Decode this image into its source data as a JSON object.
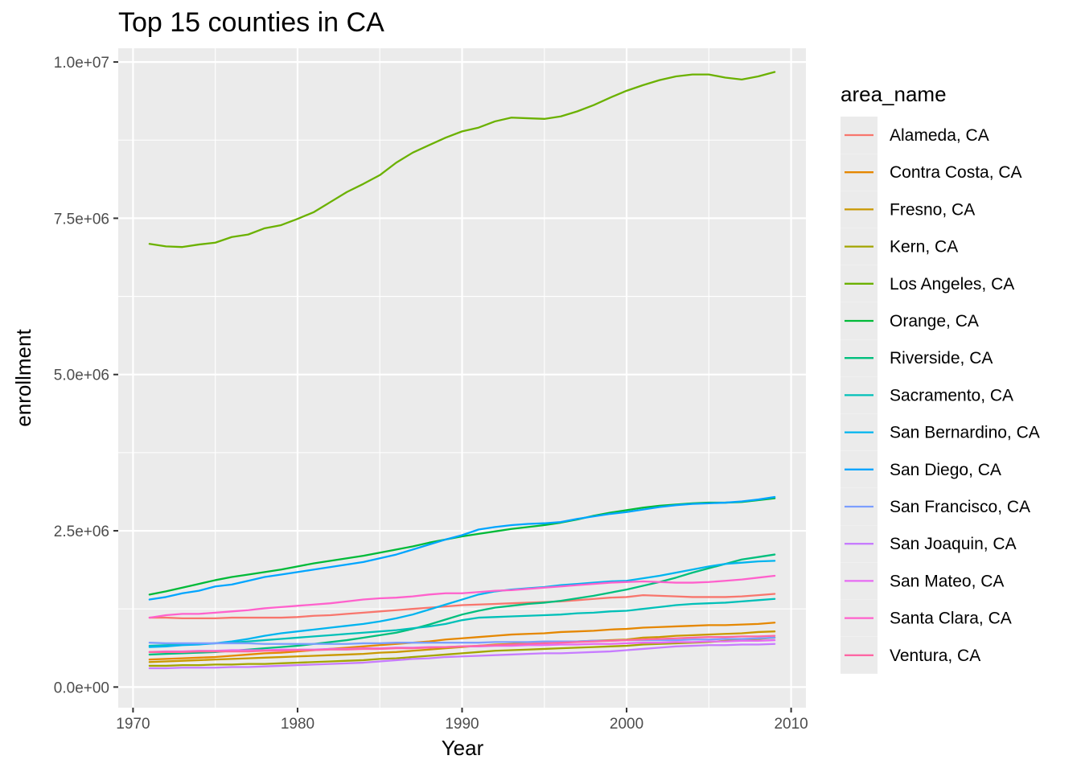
{
  "chart_data": {
    "type": "line",
    "title": "Top 15 counties in CA",
    "xlabel": "Year",
    "ylabel": "enrollment",
    "xlim": [
      1969.1,
      2010.9
    ],
    "ylim": [
      -330000,
      10220000
    ],
    "x_ticks": [
      1970,
      1980,
      1990,
      2000,
      2010
    ],
    "x_tick_labels": [
      "1970",
      "1980",
      "1990",
      "2000",
      "2010"
    ],
    "y_ticks": [
      0,
      2500000,
      5000000,
      7500000,
      10000000
    ],
    "y_tick_labels": [
      "0.0e+00",
      "2.5e+06",
      "5.0e+06",
      "7.5e+06",
      "1.0e+07"
    ],
    "grid": true,
    "legend_title": "area_name",
    "legend_position": "right",
    "x": [
      1971,
      1972,
      1973,
      1974,
      1975,
      1976,
      1977,
      1978,
      1979,
      1980,
      1981,
      1982,
      1983,
      1984,
      1985,
      1986,
      1987,
      1988,
      1989,
      1990,
      1991,
      1992,
      1993,
      1994,
      1995,
      1996,
      1997,
      1998,
      1999,
      2000,
      2001,
      2002,
      2003,
      2004,
      2005,
      2006,
      2007,
      2008,
      2009
    ],
    "series": [
      {
        "name": "Alameda, CA",
        "color": "#F8766D",
        "values": [
          1110000,
          1110000,
          1100000,
          1100000,
          1100000,
          1110000,
          1110000,
          1110000,
          1110000,
          1120000,
          1140000,
          1150000,
          1170000,
          1190000,
          1210000,
          1230000,
          1250000,
          1270000,
          1290000,
          1310000,
          1320000,
          1330000,
          1340000,
          1350000,
          1360000,
          1370000,
          1390000,
          1410000,
          1430000,
          1440000,
          1470000,
          1460000,
          1450000,
          1440000,
          1440000,
          1440000,
          1450000,
          1470000,
          1490000
        ]
      },
      {
        "name": "Contra Costa, CA",
        "color": "#E58700",
        "values": [
          440000,
          450000,
          460000,
          470000,
          480000,
          500000,
          520000,
          540000,
          550000,
          570000,
          590000,
          610000,
          630000,
          650000,
          670000,
          690000,
          710000,
          730000,
          760000,
          780000,
          800000,
          820000,
          840000,
          850000,
          860000,
          880000,
          890000,
          900000,
          920000,
          930000,
          950000,
          960000,
          970000,
          980000,
          990000,
          990000,
          1000000,
          1010000,
          1030000
        ]
      },
      {
        "name": "Fresno, CA",
        "color": "#C99800",
        "values": [
          400000,
          410000,
          420000,
          430000,
          440000,
          450000,
          460000,
          470000,
          480000,
          490000,
          500000,
          510000,
          520000,
          530000,
          550000,
          560000,
          580000,
          600000,
          620000,
          640000,
          660000,
          680000,
          690000,
          700000,
          710000,
          720000,
          730000,
          740000,
          750000,
          760000,
          790000,
          800000,
          820000,
          830000,
          840000,
          850000,
          860000,
          880000,
          890000
        ]
      },
      {
        "name": "Kern, CA",
        "color": "#A3A500",
        "values": [
          340000,
          340000,
          350000,
          350000,
          360000,
          360000,
          370000,
          370000,
          380000,
          390000,
          400000,
          410000,
          420000,
          430000,
          450000,
          460000,
          480000,
          500000,
          520000,
          540000,
          560000,
          580000,
          590000,
          600000,
          610000,
          620000,
          630000,
          640000,
          650000,
          660000,
          680000,
          690000,
          700000,
          710000,
          720000,
          740000,
          750000,
          770000,
          790000
        ]
      },
      {
        "name": "Los Angeles, CA",
        "color": "#6BB100",
        "values": [
          7090000,
          7050000,
          7040000,
          7080000,
          7110000,
          7200000,
          7240000,
          7340000,
          7390000,
          7490000,
          7600000,
          7760000,
          7920000,
          8050000,
          8190000,
          8390000,
          8550000,
          8670000,
          8790000,
          8890000,
          8950000,
          9050000,
          9110000,
          9100000,
          9090000,
          9130000,
          9210000,
          9310000,
          9430000,
          9540000,
          9630000,
          9710000,
          9770000,
          9800000,
          9800000,
          9750000,
          9720000,
          9770000,
          9840000
        ]
      },
      {
        "name": "Orange, CA",
        "color": "#00BA38",
        "values": [
          1480000,
          1530000,
          1590000,
          1650000,
          1710000,
          1760000,
          1800000,
          1840000,
          1880000,
          1930000,
          1980000,
          2020000,
          2060000,
          2100000,
          2150000,
          2200000,
          2250000,
          2310000,
          2360000,
          2410000,
          2450000,
          2490000,
          2530000,
          2560000,
          2590000,
          2630000,
          2680000,
          2740000,
          2790000,
          2830000,
          2870000,
          2900000,
          2920000,
          2940000,
          2950000,
          2950000,
          2960000,
          2990000,
          3020000
        ]
      },
      {
        "name": "Riverside, CA",
        "color": "#00BF7D",
        "values": [
          520000,
          530000,
          540000,
          550000,
          560000,
          580000,
          600000,
          620000,
          640000,
          660000,
          690000,
          720000,
          750000,
          790000,
          830000,
          870000,
          930000,
          1000000,
          1080000,
          1160000,
          1220000,
          1270000,
          1300000,
          1330000,
          1350000,
          1380000,
          1420000,
          1460000,
          1510000,
          1560000,
          1620000,
          1680000,
          1750000,
          1830000,
          1900000,
          1970000,
          2040000,
          2080000,
          2120000
        ]
      },
      {
        "name": "Sacramento, CA",
        "color": "#00C0B8",
        "values": [
          660000,
          670000,
          680000,
          690000,
          700000,
          710000,
          730000,
          750000,
          770000,
          790000,
          810000,
          830000,
          850000,
          870000,
          890000,
          910000,
          940000,
          970000,
          1010000,
          1070000,
          1110000,
          1120000,
          1130000,
          1140000,
          1150000,
          1160000,
          1180000,
          1190000,
          1210000,
          1220000,
          1250000,
          1280000,
          1310000,
          1330000,
          1340000,
          1350000,
          1370000,
          1390000,
          1410000
        ]
      },
      {
        "name": "San Bernardino, CA",
        "color": "#00B4EF",
        "values": [
          640000,
          650000,
          670000,
          680000,
          700000,
          730000,
          770000,
          820000,
          860000,
          890000,
          920000,
          950000,
          980000,
          1010000,
          1050000,
          1100000,
          1160000,
          1240000,
          1320000,
          1400000,
          1480000,
          1530000,
          1560000,
          1580000,
          1600000,
          1630000,
          1650000,
          1670000,
          1690000,
          1700000,
          1740000,
          1780000,
          1830000,
          1880000,
          1930000,
          1970000,
          1990000,
          2010000,
          2020000
        ]
      },
      {
        "name": "San Diego, CA",
        "color": "#00A5FF",
        "values": [
          1400000,
          1440000,
          1500000,
          1540000,
          1610000,
          1640000,
          1700000,
          1760000,
          1800000,
          1840000,
          1880000,
          1920000,
          1960000,
          2000000,
          2060000,
          2120000,
          2200000,
          2280000,
          2360000,
          2430000,
          2520000,
          2560000,
          2590000,
          2610000,
          2620000,
          2640000,
          2690000,
          2730000,
          2770000,
          2800000,
          2840000,
          2880000,
          2910000,
          2930000,
          2940000,
          2950000,
          2970000,
          3000000,
          3040000
        ]
      },
      {
        "name": "San Francisco, CA",
        "color": "#7C9EFF",
        "values": [
          710000,
          700000,
          700000,
          700000,
          700000,
          700000,
          700000,
          690000,
          690000,
          690000,
          690000,
          690000,
          690000,
          700000,
          700000,
          710000,
          710000,
          710000,
          710000,
          710000,
          710000,
          720000,
          720000,
          720000,
          730000,
          730000,
          730000,
          740000,
          740000,
          750000,
          750000,
          750000,
          750000,
          760000,
          760000,
          770000,
          770000,
          780000,
          790000
        ]
      },
      {
        "name": "San Joaquin, CA",
        "color": "#C77CFF",
        "values": [
          300000,
          300000,
          310000,
          310000,
          310000,
          320000,
          320000,
          330000,
          340000,
          350000,
          360000,
          370000,
          380000,
          390000,
          410000,
          430000,
          450000,
          460000,
          480000,
          490000,
          500000,
          510000,
          520000,
          530000,
          540000,
          540000,
          550000,
          560000,
          570000,
          590000,
          610000,
          630000,
          650000,
          660000,
          670000,
          670000,
          680000,
          680000,
          690000
        ]
      },
      {
        "name": "San Mateo, CA",
        "color": "#E76BF3",
        "values": [
          560000,
          570000,
          570000,
          580000,
          580000,
          590000,
          590000,
          590000,
          600000,
          600000,
          600000,
          610000,
          610000,
          620000,
          620000,
          630000,
          630000,
          640000,
          640000,
          650000,
          650000,
          660000,
          660000,
          670000,
          670000,
          680000,
          680000,
          690000,
          690000,
          700000,
          710000,
          710000,
          720000,
          720000,
          730000,
          730000,
          740000,
          740000,
          750000
        ]
      },
      {
        "name": "Santa Clara, CA",
        "color": "#FF61CC",
        "values": [
          1110000,
          1150000,
          1170000,
          1170000,
          1190000,
          1210000,
          1230000,
          1260000,
          1280000,
          1300000,
          1320000,
          1340000,
          1370000,
          1400000,
          1420000,
          1430000,
          1450000,
          1480000,
          1500000,
          1500000,
          1520000,
          1540000,
          1550000,
          1570000,
          1590000,
          1610000,
          1630000,
          1650000,
          1670000,
          1680000,
          1690000,
          1680000,
          1670000,
          1670000,
          1680000,
          1700000,
          1720000,
          1750000,
          1780000
        ]
      },
      {
        "name": "Ventura, CA",
        "color": "#FF67A4",
        "values": [
          560000,
          560000,
          560000,
          570000,
          570000,
          570000,
          570000,
          580000,
          580000,
          590000,
          590000,
          600000,
          600000,
          610000,
          610000,
          620000,
          620000,
          630000,
          640000,
          650000,
          660000,
          670000,
          680000,
          690000,
          700000,
          710000,
          720000,
          730000,
          740000,
          750000,
          760000,
          770000,
          780000,
          790000,
          800000,
          800000,
          810000,
          810000,
          820000
        ]
      }
    ]
  }
}
